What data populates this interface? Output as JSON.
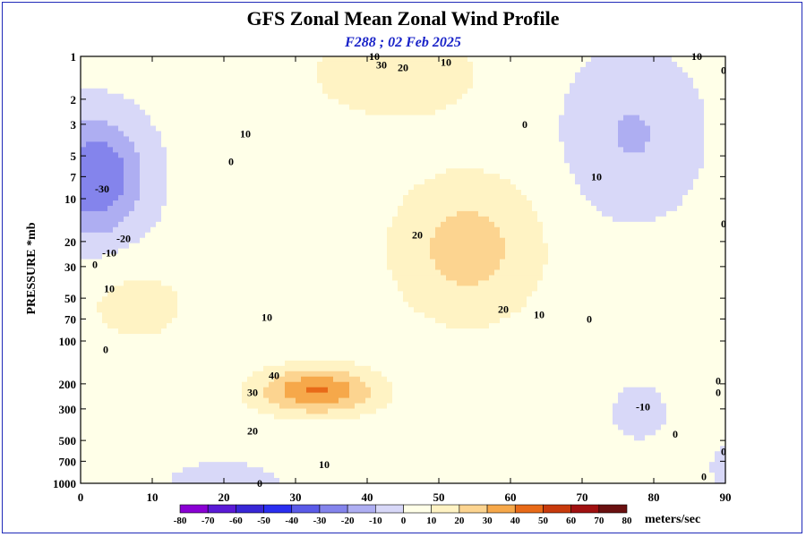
{
  "chart_data": {
    "type": "contour",
    "title": "GFS Zonal Mean Zonal Wind Profile",
    "subtitle": "F288 ; 02 Feb 2025",
    "ylabel": "PRESSURE *mb",
    "xlabel": "",
    "xlim": [
      0,
      90
    ],
    "x_ticks": [
      0,
      10,
      20,
      30,
      40,
      50,
      60,
      70,
      80,
      90
    ],
    "y_scale": "log",
    "y_reversed": true,
    "ylim": [
      1000,
      1
    ],
    "y_ticks": [
      1,
      2,
      3,
      5,
      7,
      10,
      20,
      30,
      50,
      70,
      100,
      200,
      300,
      500,
      700,
      1000
    ],
    "contour_interval": 5,
    "labeled_contours": [
      {
        "value": 10,
        "x": 41,
        "y": 1
      },
      {
        "value": 30,
        "x": 42,
        "y": 1.15
      },
      {
        "value": 20,
        "x": 45,
        "y": 1.2
      },
      {
        "value": 10,
        "x": 51,
        "y": 1.1
      },
      {
        "value": 0,
        "x": 62,
        "y": 3
      },
      {
        "value": 10,
        "x": 23,
        "y": 3.5
      },
      {
        "value": 0,
        "x": 21,
        "y": 5.5
      },
      {
        "value": -30,
        "x": 3,
        "y": 8.5
      },
      {
        "value": -20,
        "x": 6,
        "y": 19
      },
      {
        "value": -10,
        "x": 4,
        "y": 24
      },
      {
        "value": 0,
        "x": 2,
        "y": 29
      },
      {
        "value": 10,
        "x": 4,
        "y": 43
      },
      {
        "value": 0,
        "x": 3.5,
        "y": 115
      },
      {
        "value": 20,
        "x": 47,
        "y": 18
      },
      {
        "value": 10,
        "x": 26,
        "y": 68
      },
      {
        "value": 40,
        "x": 27,
        "y": 175
      },
      {
        "value": 30,
        "x": 24,
        "y": 230
      },
      {
        "value": 20,
        "x": 24,
        "y": 430
      },
      {
        "value": 10,
        "x": 34,
        "y": 740
      },
      {
        "value": 0,
        "x": 25,
        "y": 1000
      },
      {
        "value": 20,
        "x": 59,
        "y": 60
      },
      {
        "value": 10,
        "x": 64,
        "y": 65
      },
      {
        "value": 0,
        "x": 71,
        "y": 70
      },
      {
        "value": 10,
        "x": 72,
        "y": 7
      },
      {
        "value": 10,
        "x": 86,
        "y": 1
      },
      {
        "value": 0,
        "x": 90,
        "y": 1.25
      },
      {
        "value": 0,
        "x": 90,
        "y": 15
      },
      {
        "value": 0,
        "x": 89,
        "y": 190
      },
      {
        "value": 0,
        "x": 89,
        "y": 230
      },
      {
        "value": -10,
        "x": 78.5,
        "y": 290
      },
      {
        "value": 0,
        "x": 83,
        "y": 450
      },
      {
        "value": 0,
        "x": 90,
        "y": 600
      },
      {
        "value": 0,
        "x": 87,
        "y": 900
      }
    ],
    "colorbar": {
      "levels": [
        -80,
        -70,
        -60,
        -50,
        -40,
        -30,
        -20,
        -10,
        0,
        10,
        20,
        30,
        40,
        50,
        60,
        70,
        80
      ],
      "colors": [
        "#8a00d4",
        "#5a1ad6",
        "#3826d6",
        "#2a2ef0",
        "#5a5ae8",
        "#8484ec",
        "#aeaef2",
        "#d8d8f8",
        "#ffffe8",
        "#fff3c4",
        "#fcd490",
        "#f6a84a",
        "#e86a18",
        "#c83a0c",
        "#a01010",
        "#6a1010",
        "#8a6a30"
      ],
      "label": "meters/sec"
    },
    "grid": false,
    "legend": "bottom-colorbar"
  }
}
